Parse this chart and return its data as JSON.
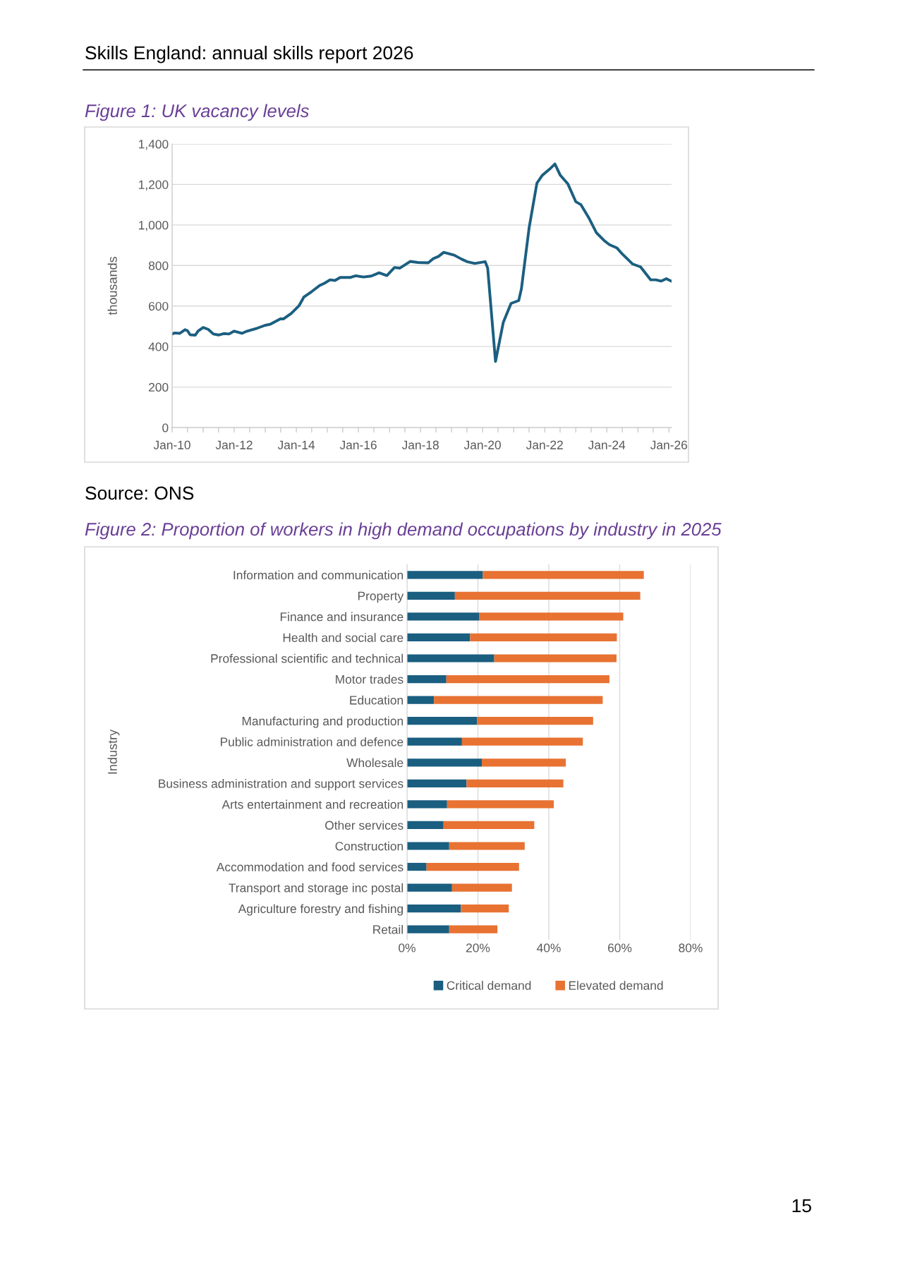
{
  "chart_data": [
    {
      "type": "line",
      "title": "Figure 1: UK vacancy levels",
      "ylabel": "thousands",
      "annotations": [
        "Skills England: annual skills report 2026",
        "Source: ONS"
      ],
      "x": [
        "2010-01",
        "2010-02",
        "2010-04",
        "2010-06",
        "2010-07",
        "2010-08",
        "2010-10",
        "2010-11",
        "2011-01",
        "2011-03",
        "2011-05",
        "2011-07",
        "2011-09",
        "2011-11",
        "2012-01",
        "2012-04",
        "2012-06",
        "2012-10",
        "2013-01",
        "2013-03",
        "2013-07",
        "2013-08",
        "2013-11",
        "2014-02",
        "2014-04",
        "2014-07",
        "2014-10",
        "2014-12",
        "2015-02",
        "2015-04",
        "2015-06",
        "2015-10",
        "2015-12",
        "2016-03",
        "2016-06",
        "2016-09",
        "2016-12",
        "2017-03",
        "2017-05",
        "2017-09",
        "2017-12",
        "2018-04",
        "2018-06",
        "2018-08",
        "2018-10",
        "2019-02",
        "2019-05",
        "2019-07",
        "2019-10",
        "2020-02",
        "2020-03",
        "2020-06",
        "2020-09",
        "2020-12",
        "2021-03",
        "2021-04",
        "2021-07",
        "2021-10",
        "2021-12",
        "2022-03",
        "2022-05",
        "2022-07",
        "2022-10",
        "2023-01",
        "2023-03",
        "2023-06",
        "2023-09",
        "2023-12",
        "2024-02",
        "2024-05",
        "2024-07",
        "2024-11",
        "2025-02",
        "2025-06",
        "2025-08",
        "2025-10",
        "2025-12",
        "2026-02"
      ],
      "series": [
        {
          "color": "#1b5f80",
          "values": [
            462,
            467,
            465,
            483,
            478,
            458,
            456,
            476,
            494,
            485,
            462,
            457,
            464,
            462,
            476,
            465,
            476,
            491,
            505,
            510,
            537,
            536,
            563,
            601,
            645,
            671,
            701,
            713,
            729,
            726,
            741,
            741,
            749,
            743,
            748,
            764,
            750,
            790,
            787,
            820,
            815,
            813,
            834,
            845,
            865,
            851,
            831,
            819,
            810,
            819,
            787,
            326,
            520,
            613,
            627,
            683,
            985,
            1206,
            1244,
            1276,
            1301,
            1247,
            1202,
            1115,
            1101,
            1037,
            962,
            923,
            903,
            886,
            857,
            807,
            793,
            729,
            729,
            723,
            735,
            722
          ]
        }
      ],
      "xlim": [
        "2010-01",
        "2026-02"
      ],
      "ylim": [
        0,
        1400
      ],
      "yticks": [
        {
          "value": 0,
          "label": "0"
        },
        {
          "value": 200,
          "label": "200"
        },
        {
          "value": 400,
          "label": "400"
        },
        {
          "value": 600,
          "label": "600"
        },
        {
          "value": 800,
          "label": "800"
        },
        {
          "value": 1000,
          "label": "1,000"
        },
        {
          "value": 1200,
          "label": "1,200"
        },
        {
          "value": 1400,
          "label": "1,400"
        }
      ],
      "xticks": [
        {
          "value": "2010-01",
          "label": "Jan-10"
        },
        {
          "value": "2010-07",
          "label": null
        },
        {
          "value": "2011-01",
          "label": null
        },
        {
          "value": "2011-07",
          "label": null
        },
        {
          "value": "2012-01",
          "label": "Jan-12"
        },
        {
          "value": "2012-07",
          "label": null
        },
        {
          "value": "2013-01",
          "label": null
        },
        {
          "value": "2013-07",
          "label": null
        },
        {
          "value": "2014-01",
          "label": "Jan-14"
        },
        {
          "value": "2014-07",
          "label": null
        },
        {
          "value": "2015-01",
          "label": null
        },
        {
          "value": "2015-07",
          "label": null
        },
        {
          "value": "2016-01",
          "label": "Jan-16"
        },
        {
          "value": "2016-07",
          "label": null
        },
        {
          "value": "2017-01",
          "label": null
        },
        {
          "value": "2017-07",
          "label": null
        },
        {
          "value": "2018-01",
          "label": "Jan-18"
        },
        {
          "value": "2018-07",
          "label": null
        },
        {
          "value": "2019-01",
          "label": null
        },
        {
          "value": "2019-07",
          "label": null
        },
        {
          "value": "2020-01",
          "label": "Jan-20"
        },
        {
          "value": "2020-07",
          "label": null
        },
        {
          "value": "2021-01",
          "label": null
        },
        {
          "value": "2021-07",
          "label": null
        },
        {
          "value": "2022-01",
          "label": "Jan-22"
        },
        {
          "value": "2022-07",
          "label": null
        },
        {
          "value": "2023-01",
          "label": null
        },
        {
          "value": "2023-07",
          "label": null
        },
        {
          "value": "2024-01",
          "label": "Jan-24"
        },
        {
          "value": "2024-07",
          "label": null
        },
        {
          "value": "2025-01",
          "label": null
        },
        {
          "value": "2025-07",
          "label": null
        },
        {
          "value": "2026-01",
          "label": "Jan-26"
        }
      ],
      "grid": "y",
      "legend": false,
      "marker": "none",
      "line_style": "solid"
    },
    {
      "type": "bar",
      "orientation": "horizontal",
      "stacked": true,
      "title": "Figure 2: Proportion of workers in high demand occupations by industry in 2025",
      "ylabel": "Industry",
      "annotations": [
        "15"
      ],
      "categories": [
        "Information and communication",
        "Property",
        "Finance and insurance",
        "Health and social care",
        "Professional scientific and technical",
        "Motor trades",
        "Education",
        "Manufacturing and production",
        "Public administration and defence",
        "Wholesale",
        "Business administration and support services",
        "Arts entertainment and recreation",
        "Other services",
        "Construction",
        "Accommodation and food services",
        "Transport and storage inc postal",
        "Agriculture forestry and fishing",
        "Retail"
      ],
      "series": [
        {
          "name": "Critical demand",
          "color": "#1a5e80",
          "values": [
            21.4,
            13.5,
            20.3,
            17.8,
            24.6,
            11.1,
            7.6,
            19.8,
            15.5,
            21.1,
            16.8,
            11.3,
            10.3,
            11.9,
            5.5,
            12.7,
            15.2,
            11.9
          ]
        },
        {
          "name": "Elevated demand",
          "color": "#e87232",
          "values": [
            45.4,
            52.3,
            40.7,
            41.4,
            34.5,
            46.0,
            47.6,
            32.7,
            34.1,
            23.7,
            27.3,
            30.1,
            25.6,
            21.3,
            26.1,
            16.9,
            13.5,
            13.6
          ]
        }
      ],
      "xlim": [
        0,
        80
      ],
      "xticks": [
        {
          "value": 0,
          "label": "0%"
        },
        {
          "value": 20,
          "label": "20%"
        },
        {
          "value": 40,
          "label": "40%"
        },
        {
          "value": 60,
          "label": "60%"
        },
        {
          "value": 80,
          "label": "80%"
        }
      ],
      "grid": "x",
      "legend": "bottom"
    }
  ]
}
